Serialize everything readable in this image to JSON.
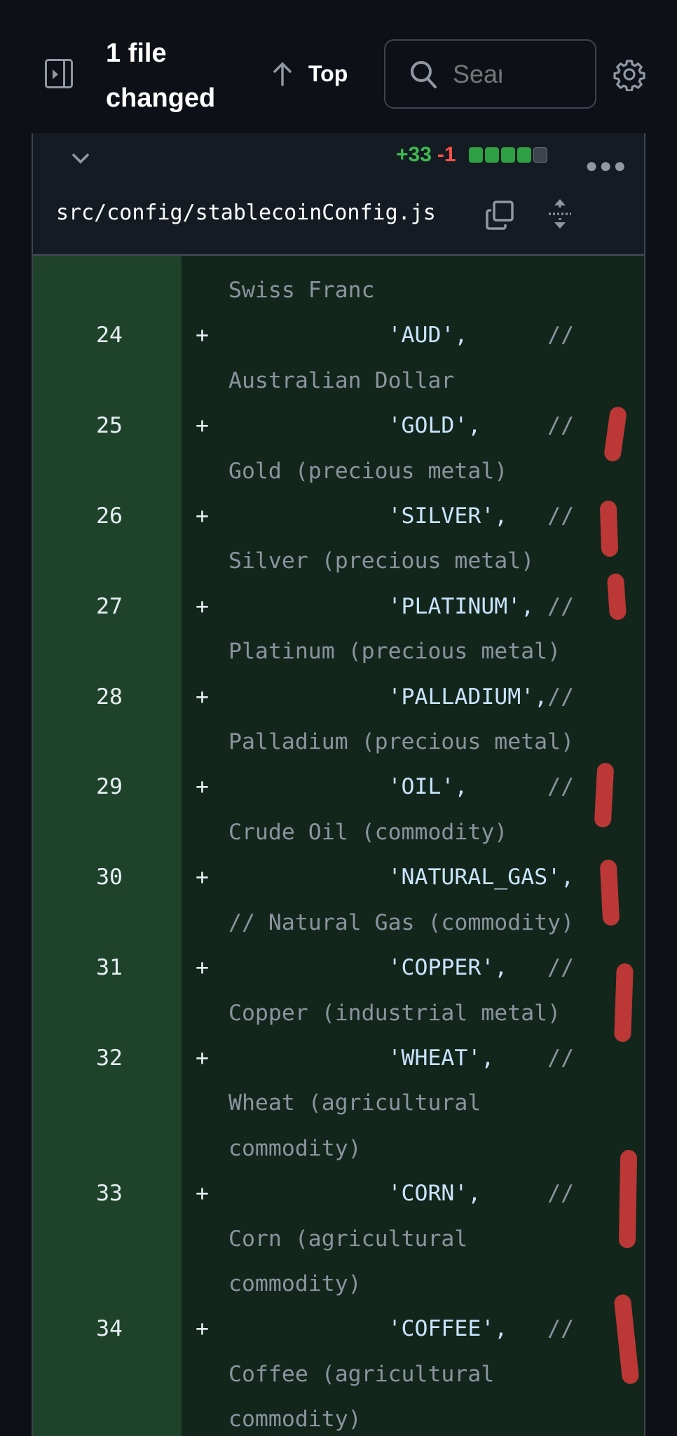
{
  "header": {
    "title": "1 file changed",
    "top_label": "Top",
    "search_placeholder": "Search"
  },
  "file": {
    "additions": "+33",
    "deletions": "-1",
    "diffstat_blocks": {
      "added": 4,
      "neutral": 1
    },
    "filename": "src/config/stablecoinConfig.js"
  },
  "colors": {
    "added": "#3fb950",
    "deleted": "#f85149",
    "gutter_bg": "#1f432a",
    "code_bg": "#12261b"
  },
  "lines": [
    {
      "num": "",
      "sign": "",
      "indent": "",
      "string": "",
      "comment": "Swiss Franc"
    },
    {
      "num": "24",
      "sign": "+",
      "indent": "            ",
      "string": "'AUD',      ",
      "comment": "// Australian Dollar"
    },
    {
      "num": "25",
      "sign": "+",
      "indent": "            ",
      "string": "'GOLD',     ",
      "comment": "// Gold (precious metal)"
    },
    {
      "num": "26",
      "sign": "+",
      "indent": "            ",
      "string": "'SILVER',   ",
      "comment": "// Silver (precious metal)"
    },
    {
      "num": "27",
      "sign": "+",
      "indent": "            ",
      "string": "'PLATINUM', ",
      "comment": "// Platinum (precious metal)"
    },
    {
      "num": "28",
      "sign": "+",
      "indent": "            ",
      "string": "'PALLADIUM',",
      "comment": "// Palladium (precious metal)"
    },
    {
      "num": "29",
      "sign": "+",
      "indent": "            ",
      "string": "'OIL',      ",
      "comment": "// Crude Oil (commodity)"
    },
    {
      "num": "30",
      "sign": "+",
      "indent": "            ",
      "string": "'NATURAL_GAS', ",
      "comment": "// Natural Gas (commodity)"
    },
    {
      "num": "31",
      "sign": "+",
      "indent": "            ",
      "string": "'COPPER',   ",
      "comment": "// Copper (industrial metal)"
    },
    {
      "num": "32",
      "sign": "+",
      "indent": "            ",
      "string": "'WHEAT',    ",
      "comment": "// Wheat (agricultural commodity)"
    },
    {
      "num": "33",
      "sign": "+",
      "indent": "            ",
      "string": "'CORN',     ",
      "comment": "// Corn (agricultural commodity)"
    },
    {
      "num": "34",
      "sign": "+",
      "indent": "            ",
      "string": "'COFFEE',   ",
      "comment": "// Coffee (agricultural commodity)"
    }
  ]
}
